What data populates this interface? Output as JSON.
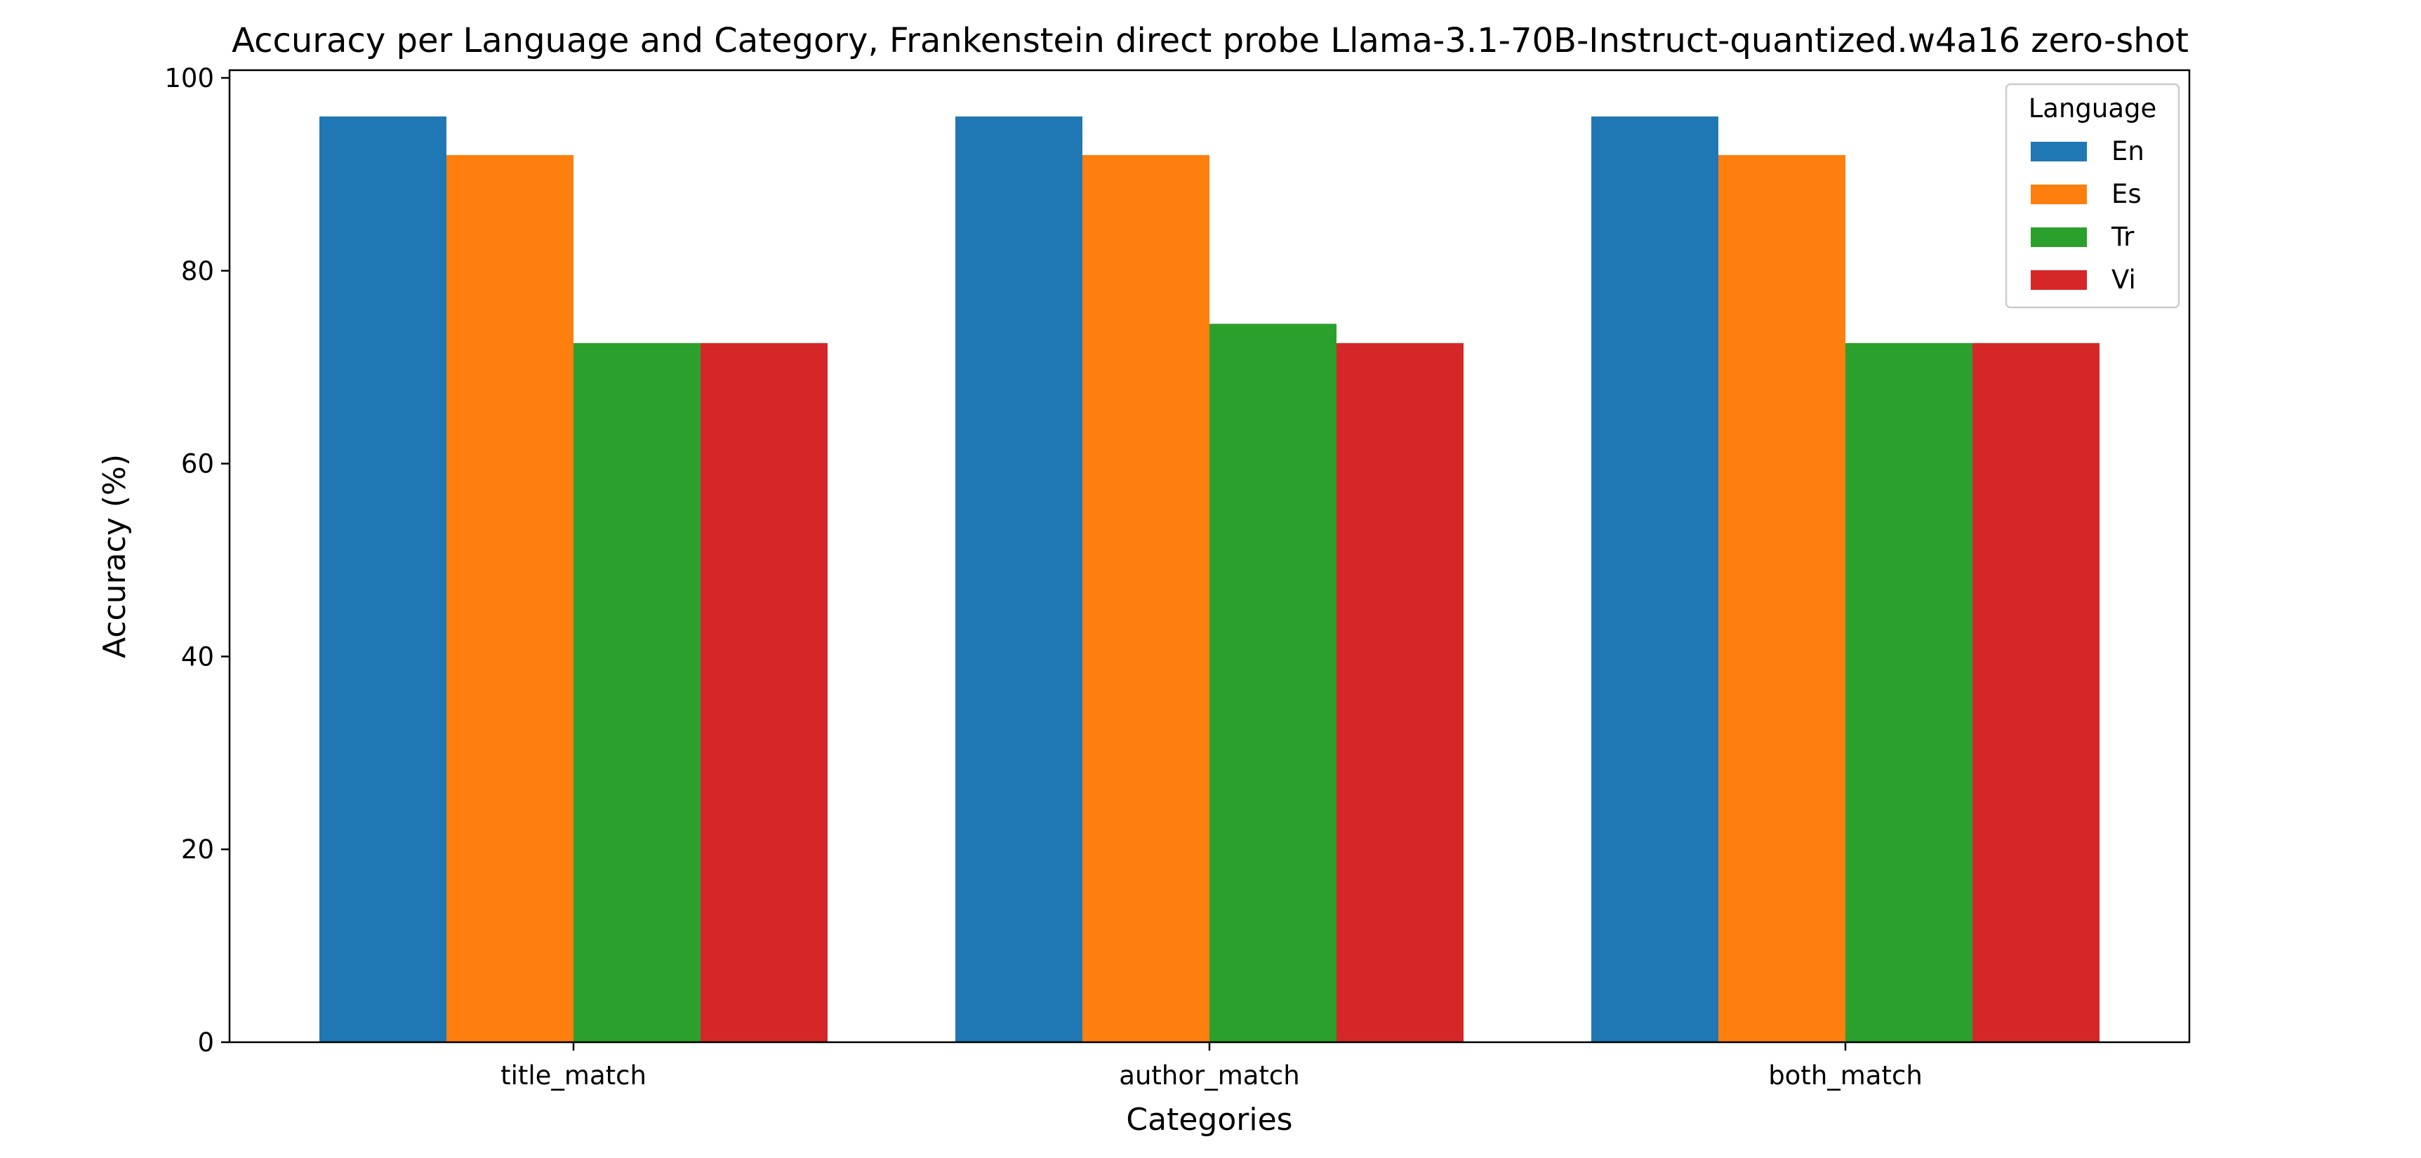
{
  "chart_data": {
    "type": "bar",
    "title": "Accuracy per Language and Category, Frankenstein direct probe Llama-3.1-70B-Instruct-quantized.w4a16 zero-shot",
    "xlabel": "Categories",
    "ylabel": "Accuracy (%)",
    "categories": [
      "title_match",
      "author_match",
      "both_match"
    ],
    "series": [
      {
        "name": "En",
        "color": "#1f77b4",
        "values": [
          96.0,
          96.0,
          96.0
        ]
      },
      {
        "name": "Es",
        "color": "#ff7f0e",
        "values": [
          92.0,
          92.0,
          92.0
        ]
      },
      {
        "name": "Tr",
        "color": "#2ca02c",
        "values": [
          72.5,
          74.5,
          72.5
        ]
      },
      {
        "name": "Vi",
        "color": "#d62728",
        "values": [
          72.5,
          72.5,
          72.5
        ]
      }
    ],
    "ylim": [
      0,
      100.8
    ],
    "yticks": [
      0,
      20,
      40,
      60,
      80,
      100
    ],
    "legend": {
      "title": "Language",
      "placement": "top-right"
    },
    "grid": false
  }
}
